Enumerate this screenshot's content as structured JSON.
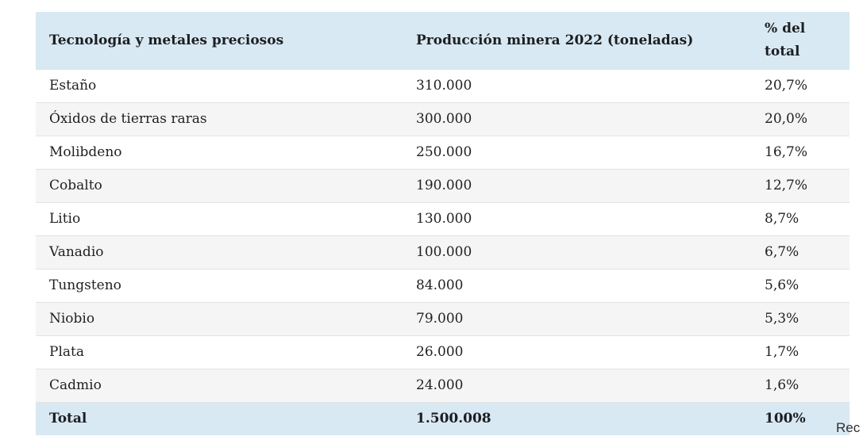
{
  "table": {
    "headers": {
      "material": "Tecnología y metales preciosos",
      "production": "Producción minera 2022 (toneladas)",
      "percent": "% del total"
    },
    "rows": [
      {
        "material": "Estaño",
        "production": "310.000",
        "percent": "20,7%"
      },
      {
        "material": "Óxidos de tierras raras",
        "production": "300.000",
        "percent": "20,0%"
      },
      {
        "material": "Molibdeno",
        "production": "250.000",
        "percent": "16,7%"
      },
      {
        "material": "Cobalto",
        "production": "190.000",
        "percent": "12,7%"
      },
      {
        "material": "Litio",
        "production": "130.000",
        "percent": "8,7%"
      },
      {
        "material": "Vanadio",
        "production": "100.000",
        "percent": "6,7%"
      },
      {
        "material": "Tungsteno",
        "production": "84.000",
        "percent": "5,6%"
      },
      {
        "material": "Niobio",
        "production": "79.000",
        "percent": "5,3%"
      },
      {
        "material": "Plata",
        "production": "26.000",
        "percent": "1,7%"
      },
      {
        "material": "Cadmio",
        "production": "24.000",
        "percent": "1,6%"
      }
    ],
    "total": {
      "material": "Total",
      "production": "1.500.008",
      "percent": "100%"
    }
  },
  "caption_fragment": "Rec",
  "colors": {
    "header_bg": "#d8e9f3",
    "alt_row_bg": "#f5f5f5",
    "row_border": "#e3e3e3",
    "text": "#202122"
  },
  "chart_data": {
    "type": "table",
    "title": "",
    "columns": [
      "Tecnología y metales preciosos",
      "Producción minera 2022 (toneladas)",
      "% del total"
    ],
    "rows": [
      [
        "Estaño",
        310000,
        20.7
      ],
      [
        "Óxidos de tierras raras",
        300000,
        20.0
      ],
      [
        "Molibdeno",
        250000,
        16.7
      ],
      [
        "Cobalto",
        190000,
        12.7
      ],
      [
        "Litio",
        130000,
        8.7
      ],
      [
        "Vanadio",
        100000,
        6.7
      ],
      [
        "Tungsteno",
        84000,
        5.6
      ],
      [
        "Niobio",
        79000,
        5.3
      ],
      [
        "Plata",
        26000,
        1.7
      ],
      [
        "Cadmio",
        24000,
        1.6
      ]
    ],
    "total_row": [
      "Total",
      1500008,
      100
    ]
  }
}
